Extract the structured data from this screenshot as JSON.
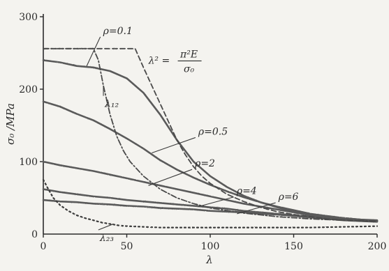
{
  "chart_data": {
    "type": "line",
    "xlabel": "λ",
    "ylabel": "σ₀ /MPa",
    "xlim": [
      0,
      200
    ],
    "ylim": [
      0,
      300
    ],
    "xticks": [
      0,
      50,
      100,
      150,
      200
    ],
    "yticks": [
      0,
      100,
      200,
      300
    ],
    "grid": false,
    "legend": "none",
    "series": [
      {
        "name": "ρ=0.1",
        "style": "solid",
        "x": [
          0,
          10,
          20,
          30,
          40,
          50,
          60,
          70,
          80,
          90,
          100,
          110,
          120,
          130,
          140,
          150,
          160,
          170,
          180,
          190,
          200
        ],
        "y": [
          240,
          237,
          232,
          230,
          225,
          215,
          195,
          165,
          130,
          100,
          80,
          65,
          53,
          44,
          37,
          31,
          27,
          24,
          22,
          20,
          19
        ]
      },
      {
        "name": "ρ=0.5",
        "style": "solid",
        "x": [
          0,
          10,
          20,
          30,
          40,
          50,
          60,
          70,
          80,
          90,
          100,
          110,
          120,
          130,
          140,
          150,
          160,
          170,
          180,
          190,
          200
        ],
        "y": [
          183,
          176,
          166,
          157,
          145,
          132,
          118,
          102,
          89,
          78,
          68,
          59,
          51,
          44,
          38,
          33,
          28,
          25,
          22,
          20,
          18
        ]
      },
      {
        "name": "ρ=2",
        "style": "solid",
        "x": [
          0,
          10,
          20,
          30,
          40,
          50,
          60,
          70,
          80,
          90,
          100,
          110,
          120,
          130,
          140,
          150,
          160,
          170,
          180,
          190,
          200
        ],
        "y": [
          100,
          95,
          91,
          87,
          82,
          77,
          72,
          67,
          62,
          57,
          52,
          47,
          42,
          38,
          34,
          30,
          26,
          23,
          21,
          19,
          18
        ]
      },
      {
        "name": "ρ=4",
        "style": "solid",
        "x": [
          0,
          10,
          20,
          30,
          40,
          50,
          60,
          70,
          80,
          90,
          100,
          110,
          120,
          130,
          140,
          150,
          160,
          170,
          180,
          190,
          200
        ],
        "y": [
          62,
          58,
          55,
          52,
          50,
          47,
          45,
          43,
          41,
          39,
          37,
          35,
          32,
          30,
          28,
          26,
          24,
          22,
          20,
          19,
          18
        ]
      },
      {
        "name": "ρ=6",
        "style": "solid",
        "x": [
          0,
          10,
          20,
          30,
          40,
          50,
          60,
          70,
          80,
          90,
          100,
          110,
          120,
          130,
          140,
          150,
          160,
          170,
          180,
          190,
          200
        ],
        "y": [
          47,
          45,
          44,
          42,
          41,
          39,
          38,
          36,
          35,
          34,
          32,
          31,
          30,
          28,
          27,
          25,
          23,
          21,
          19,
          18,
          17
        ]
      },
      {
        "name": "λ²=π²E/σ₀",
        "style": "dashed",
        "x": [
          0,
          55,
          60,
          65,
          70,
          75,
          80,
          85,
          90,
          95,
          100,
          110,
          120,
          130,
          140,
          150,
          160,
          170,
          180,
          190,
          200
        ],
        "y": [
          256,
          256,
          230,
          205,
          180,
          155,
          130,
          110,
          93,
          80,
          70,
          55,
          45,
          37,
          31,
          27,
          24,
          21,
          19,
          18,
          17
        ]
      },
      {
        "name": "λ₁₂",
        "style": "dashdot",
        "x": [
          0,
          30,
          33,
          36,
          40,
          44,
          48,
          52,
          56,
          60,
          70,
          80,
          90,
          100,
          120,
          140,
          160,
          180,
          200
        ],
        "y": [
          256,
          256,
          240,
          205,
          165,
          135,
          115,
          100,
          90,
          80,
          62,
          50,
          42,
          36,
          29,
          24,
          21,
          19,
          18
        ]
      },
      {
        "name": "λ₂₃",
        "style": "dotted",
        "x": [
          0,
          3,
          6,
          10,
          15,
          20,
          25,
          30,
          35,
          40,
          45,
          50,
          60,
          70,
          80,
          100,
          120,
          140,
          160,
          180,
          200
        ],
        "y": [
          75,
          62,
          50,
          40,
          32,
          26,
          22,
          19,
          16,
          14,
          12,
          11,
          10,
          9,
          9,
          9,
          9,
          9,
          9,
          10,
          11
        ]
      }
    ],
    "annotations": [
      {
        "id": "rho01",
        "text": "ρ=0.1",
        "ax": 26,
        "ay": 232,
        "tx": 35,
        "ty": 278
      },
      {
        "id": "rho05",
        "text": "ρ=0.5",
        "ax": 65,
        "ay": 112,
        "tx": 92,
        "ty": 139
      },
      {
        "id": "rho2",
        "text": "ρ=2",
        "ax": 63,
        "ay": 67,
        "tx": 90,
        "ty": 95
      },
      {
        "id": "rho4",
        "text": "ρ=4",
        "ax": 93,
        "ay": 38,
        "tx": 115,
        "ty": 57
      },
      {
        "id": "rho6",
        "text": "ρ=6",
        "ax": 116,
        "ay": 28,
        "tx": 140,
        "ty": 49
      },
      {
        "id": "lambda12",
        "text": "λ₁₂",
        "ax": 36,
        "ay": 205,
        "tx": 36,
        "ty": 185
      },
      {
        "id": "lambda23",
        "text": "λ₂₃",
        "ax": 42,
        "ay": 14,
        "tx": 33,
        "ty": 0
      }
    ],
    "formula": {
      "lhs": "λ² =",
      "numerator": "π²E",
      "denominator": "σ₀",
      "x": 63,
      "y": 240
    }
  }
}
